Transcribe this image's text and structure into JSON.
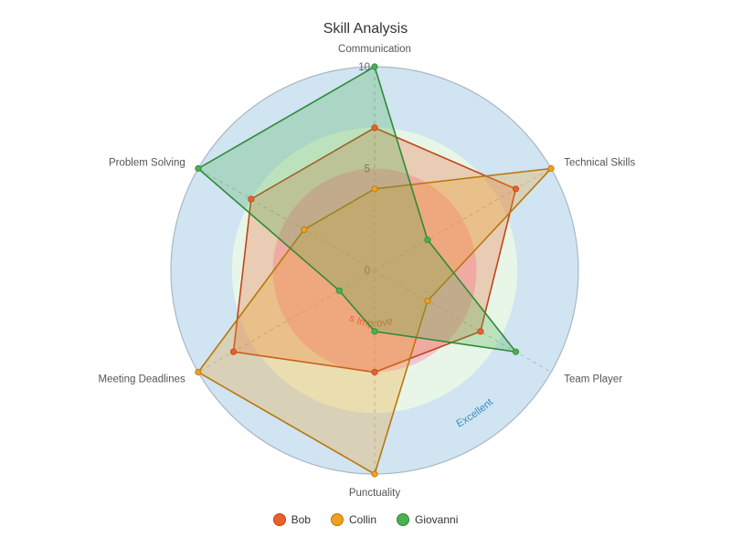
{
  "chart_data": {
    "type": "radar",
    "title": "Skill Analysis",
    "indicators": [
      "Communication",
      "Technical Skills",
      "Team Player",
      "Punctuality",
      "Meeting Deadlines",
      "Problem Solving"
    ],
    "max": 10,
    "ticks": [
      0,
      5,
      10
    ],
    "bands": [
      {
        "label": "Needs Improvement",
        "from": 0,
        "to": 5,
        "color": "#e8a0b0",
        "text_color": "#d9534f"
      },
      {
        "label": "",
        "from": 5,
        "to": 7,
        "color": "#d9f0d9",
        "text_color": ""
      },
      {
        "label": "Excellent",
        "from": 7,
        "to": 10,
        "color": "#a9cde8",
        "text_color": "#3a8fc7"
      }
    ],
    "series": [
      {
        "name": "Bob",
        "values": [
          7,
          8,
          6,
          5,
          8,
          7
        ],
        "color": "#e8612c"
      },
      {
        "name": "Collin",
        "values": [
          4,
          10,
          3,
          10,
          10,
          4
        ],
        "color": "#f0a020"
      },
      {
        "name": "Giovanni",
        "values": [
          10,
          3,
          8,
          3,
          2,
          10
        ],
        "color": "#4caf50"
      }
    ]
  }
}
